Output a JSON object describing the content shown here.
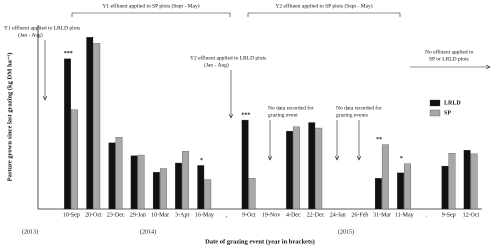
{
  "chart_data": {
    "type": "bar",
    "y_label": "Pasture grown since last grazing (kg DM ha⁻¹)",
    "x_label": "Date of grazing event (year in brackets)",
    "categories": [
      null,
      "10-Sep",
      "20-Oct",
      "23-Dec",
      "29-Jan",
      "10-Mar",
      "3-Apr",
      "16-May",
      ",",
      "9-Oct",
      "19-Nov",
      "4-Dec",
      "22-Dec",
      "24-Jan",
      "26-Feb",
      "31-Mar",
      "11-May",
      ".",
      "9-Sep",
      "12-Oct"
    ],
    "series": [
      {
        "name": "LRLD",
        "color": "#111111",
        "values": [
          null,
          2450,
          2800,
          1080,
          870,
          600,
          750,
          710,
          null,
          1450,
          null,
          1270,
          1410,
          null,
          null,
          500,
          590,
          null,
          700,
          960
        ]
      },
      {
        "name": "SP",
        "color": "#a8a8a8",
        "values": [
          null,
          1620,
          2700,
          1170,
          880,
          660,
          940,
          480,
          null,
          500,
          null,
          1340,
          1320,
          null,
          null,
          1050,
          740,
          null,
          910,
          900
        ]
      }
    ],
    "significance": [
      null,
      "***",
      null,
      null,
      null,
      null,
      null,
      "*",
      null,
      "***",
      null,
      null,
      null,
      null,
      null,
      "**",
      "*",
      null,
      null,
      null
    ],
    "years": [
      "(2013)",
      "(2014)",
      "(2015)"
    ],
    "annotations": [
      "Y1 effluent applied to SP plots (Sept - May)",
      "Y2 effluent applied to SP plots (Sept - May)",
      "Y1 effluent applied to LRLD plots",
      "(Jan - Aug)",
      "Y2 effluent applied to LRLD plots",
      "(Jan - Aug)",
      "No data recorded for",
      "grazing event",
      "No data recorded for",
      "grazing events",
      "No effluent applied to",
      "SP or LRLD plots"
    ],
    "ylim": [
      0,
      3000
    ],
    "legend": "upper right"
  }
}
